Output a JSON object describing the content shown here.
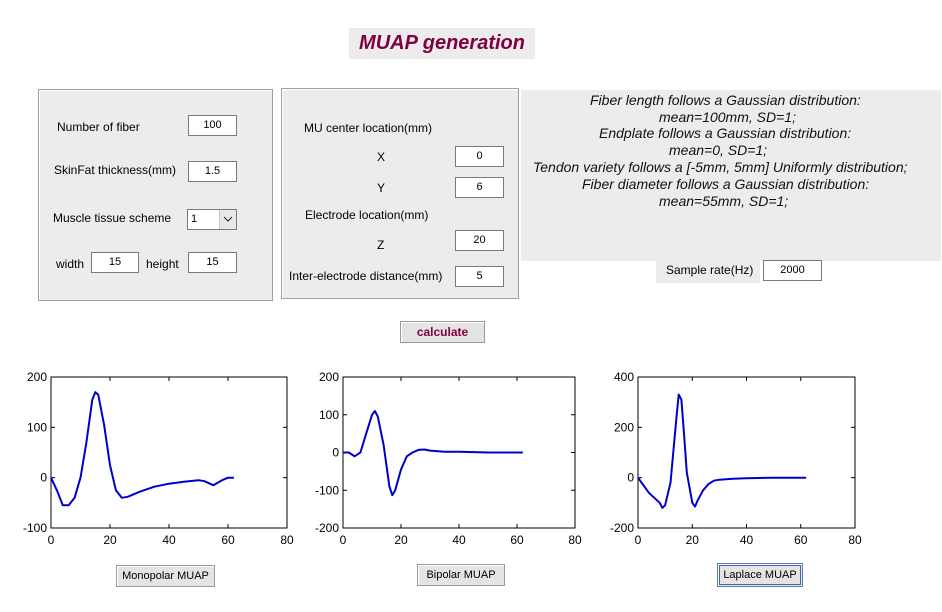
{
  "title": "MUAP generation",
  "left_panel": {
    "fiber_count_label": "Number of fiber",
    "fiber_count_value": "100",
    "skinfat_label": "SkinFat thickness(mm)",
    "skinfat_value": "1.5",
    "muscle_scheme_label": "Muscle tissue scheme",
    "muscle_scheme_value": "1",
    "width_label": "width",
    "width_value": "15",
    "height_label": "height",
    "height_value": "15"
  },
  "center_panel": {
    "mu_center_label": "MU center location(mm)",
    "x_label": "X",
    "x_value": "0",
    "y_label": "Y",
    "y_value": "6",
    "electrode_label": "Electrode location(mm)",
    "z_label": "Z",
    "z_value": "20",
    "ied_label": "Inter-electrode distance(mm)",
    "ied_value": "5"
  },
  "info_lines": [
    "Fiber length follows a Gaussian distribution:",
    "mean=100mm, SD=1;",
    "Endplate follows a Gaussian distribution:",
    "mean=0, SD=1;",
    "Tendon variety follows a [-5mm, 5mm] Uniformly distribution;",
    "Fiber diameter follows a Gaussian distribution:",
    "mean=55mm, SD=1;"
  ],
  "sample_rate": {
    "label": "Sample rate(Hz)",
    "value": "2000"
  },
  "calculate_label": "calculate",
  "buttons": {
    "monopolar": "Monopolar MUAP",
    "bipolar": "Bipolar MUAP",
    "laplace": "Laplace MUAP"
  },
  "colors": {
    "accent": "#800040",
    "line": "#0000cc",
    "panel": "#ececec"
  },
  "chart_data": [
    {
      "type": "line",
      "title": "",
      "xlabel": "",
      "ylabel": "",
      "xlim": [
        0,
        80
      ],
      "ylim": [
        -100,
        200
      ],
      "xticks": [
        0,
        20,
        40,
        60,
        80
      ],
      "yticks": [
        -100,
        0,
        100,
        200
      ],
      "x": [
        0,
        2,
        4,
        6,
        8,
        10,
        12,
        14,
        15,
        16,
        18,
        20,
        22,
        24,
        26,
        28,
        30,
        35,
        40,
        45,
        50,
        52,
        55,
        58,
        60,
        62
      ],
      "y": [
        0,
        -25,
        -55,
        -55,
        -40,
        0,
        70,
        155,
        170,
        165,
        105,
        25,
        -25,
        -40,
        -38,
        -33,
        -28,
        -18,
        -12,
        -8,
        -5,
        -7,
        -15,
        -5,
        0,
        0
      ]
    },
    {
      "type": "line",
      "title": "",
      "xlabel": "",
      "ylabel": "",
      "xlim": [
        0,
        80
      ],
      "ylim": [
        -200,
        200
      ],
      "xticks": [
        0,
        20,
        40,
        60,
        80
      ],
      "yticks": [
        -200,
        -100,
        0,
        100,
        200
      ],
      "x": [
        0,
        2,
        4,
        6,
        8,
        10,
        11,
        12,
        14,
        16,
        17,
        18,
        20,
        22,
        24,
        26,
        28,
        30,
        35,
        40,
        50,
        62
      ],
      "y": [
        0,
        0,
        -10,
        0,
        50,
        100,
        110,
        95,
        20,
        -90,
        -113,
        -100,
        -45,
        -10,
        0,
        7,
        8,
        5,
        2,
        2,
        0,
        0
      ]
    },
    {
      "type": "line",
      "title": "",
      "xlabel": "",
      "ylabel": "",
      "xlim": [
        0,
        80
      ],
      "ylim": [
        -200,
        400
      ],
      "xticks": [
        0,
        20,
        40,
        60,
        80
      ],
      "yticks": [
        -200,
        0,
        200,
        400
      ],
      "x": [
        0,
        2,
        4,
        6,
        8,
        9,
        10,
        12,
        14,
        15,
        16,
        17,
        18,
        20,
        21,
        22,
        24,
        26,
        28,
        30,
        35,
        40,
        50,
        62
      ],
      "y": [
        0,
        -30,
        -60,
        -80,
        -100,
        -120,
        -110,
        -20,
        220,
        330,
        310,
        170,
        20,
        -100,
        -115,
        -90,
        -50,
        -25,
        -12,
        -8,
        -4,
        -2,
        0,
        0
      ]
    }
  ]
}
